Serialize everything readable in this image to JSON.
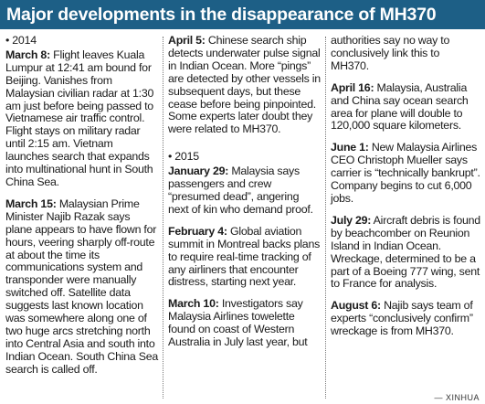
{
  "title": "Major developments in the disappearance of MH370",
  "year_2014": "• 2014",
  "year_2015": "• 2015",
  "entries": {
    "mar8": {
      "date": "March 8:",
      "text": "Flight leaves Kuala Lumpur at 12:41 am bound for Beijing. Vanishes from Malaysian civilian radar at 1:30 am just before being passed to Vietnamese air traffic control. Flight stays on military radar until 2:15 am. Vietnam launches search that expands into multinational hunt in South China Sea."
    },
    "mar15": {
      "date": "March 15:",
      "text": "Malaysian Prime Minister Najib Razak says plane appears to have flown for hours, veering sharply off-route at about the time its communications system and transponder were manually switched off. Satellite data suggests last known location was somewhere along one of two huge arcs stretching north into Central Asia and south into Indian Ocean. South China Sea search is called off."
    },
    "apr5": {
      "date": "April 5:",
      "text": "Chinese search ship detects underwater pulse signal in Indian Ocean. More “pings” are detected by other vessels in subsequent days, but these cease before being pinpointed. Some experts later doubt they were related to MH370."
    },
    "jan29": {
      "date": "January 29:",
      "text": "Malaysia says passengers and crew “presumed dead”, angering next of kin who demand proof."
    },
    "feb4": {
      "date": "February 4:",
      "text": "Global aviation summit in Montreal backs plans to require real-time tracking of any airliners that encounter distress, starting next year."
    },
    "mar10": {
      "date": "March 10:",
      "text": "Investigators say Malaysia Airlines towelette found on coast of Western Australia in July last year, but"
    },
    "mar10_cont": {
      "text": "authorities say no way to conclusively link this to MH370."
    },
    "apr16": {
      "date": "April 16:",
      "text": "Malaysia, Australia and China say ocean search area for plane will double to 120,000 square kilometers."
    },
    "jun1": {
      "date": "June 1:",
      "text": "New Malaysia Airlines CEO Christoph Mueller says carrier is “technically bankrupt”. Company begins to cut 6,000 jobs."
    },
    "jul29": {
      "date": "July 29:",
      "text": "Aircraft debris is found by beachcomber on Reunion Island in Indian Ocean. Wreckage, determined to be a part of a Boeing 777 wing, sent to France for analysis."
    },
    "aug6": {
      "date": "August 6:",
      "text": "Najib says team of experts “conclusively confirm” wreckage is from MH370."
    }
  },
  "credit": "— XINHUA"
}
